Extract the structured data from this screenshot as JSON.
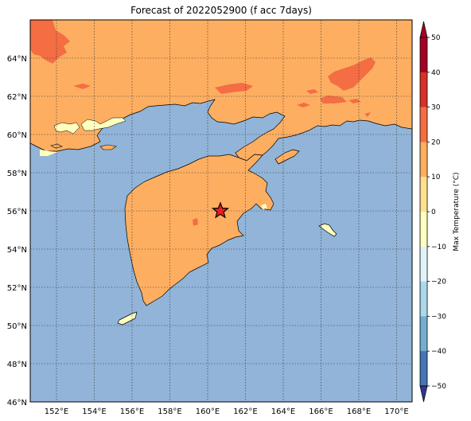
{
  "title": "Forecast of 2022052900 (f acc 7days)",
  "colorbar": {
    "label": "Max Temperature (°C)",
    "ticks": [
      "50",
      "40",
      "30",
      "20",
      "10",
      "0",
      "−10",
      "−20",
      "−30",
      "−40",
      "−50"
    ],
    "colors": [
      "#a50026",
      "#d73027",
      "#f46d43",
      "#fdae61",
      "#fee090",
      "#ffffbf",
      "#e0f3f8",
      "#abd9e9",
      "#74add1",
      "#4575b4",
      "#313695"
    ]
  },
  "map": {
    "lon_labels": [
      "152°E",
      "154°E",
      "156°E",
      "158°E",
      "160°E",
      "162°E",
      "164°E",
      "166°E",
      "168°E",
      "170°E"
    ],
    "lat_labels": [
      "64°N",
      "62°N",
      "60°N",
      "58°N",
      "56°N",
      "54°N",
      "52°N",
      "50°N",
      "48°N",
      "46°N"
    ],
    "lon_range": [
      150.5,
      170.7
    ],
    "lat_range": [
      46,
      66
    ],
    "ocean_color": "#91b4d8",
    "land_warm_color": "#fdae61",
    "land_hot_color": "#f46d43",
    "land_cool_color": "#ffffbf",
    "marker": {
      "icon": "red-star-icon",
      "lon": 160.7,
      "lat": 56.0,
      "color": "#e8201c"
    }
  }
}
